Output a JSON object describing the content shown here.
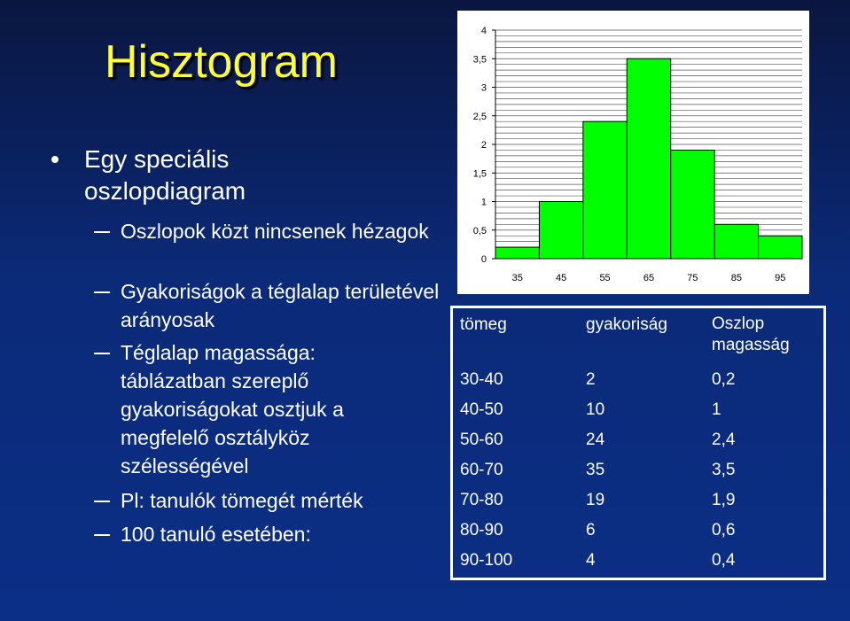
{
  "slide": {
    "title": "Hisztogram",
    "bullet": "Egy speciális oszlopdiagram",
    "sub_bullets": [
      "Oszlopok közt nincsenek hézagok",
      "Gyakoriságok a téglalap területével arányosak",
      "Téglalap magassága: táblázatban szereplő gyakoriságokat osztjuk a megfelelő osztályköz szélességével",
      "Pl: tanulók tömegét mérték",
      "100 tanuló esetében:"
    ]
  },
  "colors": {
    "bar_fill": "#00ff00",
    "title": "#ffff33",
    "grid": "#555555"
  },
  "chart_data": {
    "type": "bar",
    "categories": [
      "35",
      "45",
      "55",
      "65",
      "75",
      "85",
      "95"
    ],
    "values": [
      0.2,
      1,
      2.4,
      3.5,
      1.9,
      0.6,
      0.4
    ],
    "y_tick_labels": [
      "0",
      "0,5",
      "1",
      "1,5",
      "2",
      "2,5",
      "3",
      "3,5",
      "4"
    ],
    "ylim": [
      0,
      4
    ],
    "title": "",
    "xlabel": "",
    "ylabel": ""
  },
  "table": {
    "headers": [
      "tömeg",
      "gyakoriság",
      "Oszlop magasság"
    ],
    "rows": [
      [
        "30-40",
        "2",
        "0,2"
      ],
      [
        "40-50",
        "10",
        "1"
      ],
      [
        "50-60",
        "24",
        "2,4"
      ],
      [
        "60-70",
        "35",
        "3,5"
      ],
      [
        "70-80",
        "19",
        "1,9"
      ],
      [
        "80-90",
        "6",
        "0,6"
      ],
      [
        "90-100",
        "4",
        "0,4"
      ]
    ]
  }
}
